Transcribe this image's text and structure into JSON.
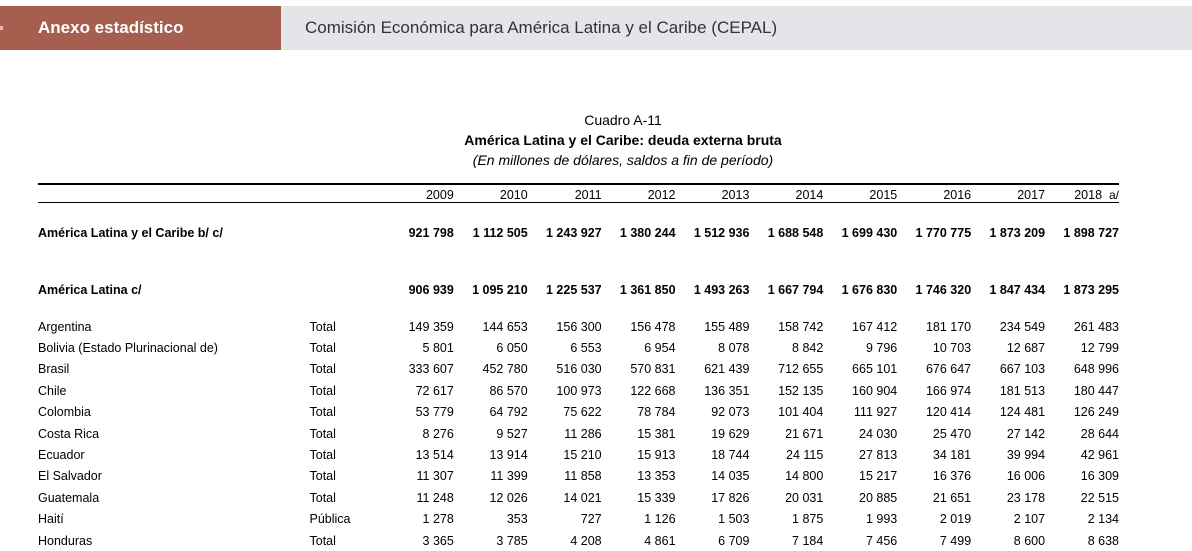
{
  "header": {
    "section": "Anexo estadístico",
    "organization": "Comisión Económica para América Latina y el Caribe (CEPAL)"
  },
  "table": {
    "number": "Cuadro A-11",
    "title": "América Latina y el Caribe: deuda externa bruta",
    "subtitle": "(En millones de dólares, saldos a fin de período)",
    "years": [
      "2009",
      "2010",
      "2011",
      "2012",
      "2013",
      "2014",
      "2015",
      "2016",
      "2017",
      "2018"
    ],
    "last_year_note": "a/",
    "aggregates": [
      {
        "label": "América Latina y el Caribe b/ c/",
        "values": [
          "921 798",
          "1 112 505",
          "1 243 927",
          "1 380 244",
          "1 512 936",
          "1 688 548",
          "1 699 430",
          "1 770 775",
          "1 873 209",
          "1 898 727"
        ]
      },
      {
        "label": "América Latina c/",
        "values": [
          "906 939",
          "1 095 210",
          "1 225 537",
          "1 361 850",
          "1 493 263",
          "1 667 794",
          "1 676 830",
          "1 746 320",
          "1 847 434",
          "1 873 295"
        ]
      }
    ],
    "rows": [
      {
        "country": "Argentina",
        "type": "Total",
        "values": [
          "149 359",
          "144 653",
          "156 300",
          "156 478",
          "155 489",
          "158 742",
          "167 412",
          "181 170",
          "234 549",
          "261 483"
        ]
      },
      {
        "country": "Bolivia (Estado Plurinacional de)",
        "type": "Total",
        "values": [
          "5 801",
          "6 050",
          "6 553",
          "6 954",
          "8 078",
          "8 842",
          "9 796",
          "10 703",
          "12 687",
          "12 799"
        ]
      },
      {
        "country": "Brasil",
        "type": "Total",
        "values": [
          "333 607",
          "452 780",
          "516 030",
          "570 831",
          "621 439",
          "712 655",
          "665 101",
          "676 647",
          "667 103",
          "648 996"
        ]
      },
      {
        "country": "Chile",
        "type": "Total",
        "values": [
          "72 617",
          "86 570",
          "100 973",
          "122 668",
          "136 351",
          "152 135",
          "160 904",
          "166 974",
          "181 513",
          "180 447"
        ]
      },
      {
        "country": "Colombia",
        "type": "Total",
        "values": [
          "53 779",
          "64 792",
          "75 622",
          "78 784",
          "92 073",
          "101 404",
          "111 927",
          "120 414",
          "124 481",
          "126 249"
        ]
      },
      {
        "country": "Costa Rica",
        "type": "Total",
        "values": [
          "8 276",
          "9 527",
          "11 286",
          "15 381",
          "19 629",
          "21 671",
          "24 030",
          "25 470",
          "27 142",
          "28 644"
        ]
      },
      {
        "country": "Ecuador",
        "type": "Total",
        "values": [
          "13 514",
          "13 914",
          "15 210",
          "15 913",
          "18 744",
          "24 115",
          "27 813",
          "34 181",
          "39 994",
          "42 961"
        ]
      },
      {
        "country": "El Salvador",
        "type": "Total",
        "values": [
          "11 307",
          "11 399",
          "11 858",
          "13 353",
          "14 035",
          "14 800",
          "15 217",
          "16 376",
          "16 006",
          "16 309"
        ]
      },
      {
        "country": "Guatemala",
        "type": "Total",
        "values": [
          "11 248",
          "12 026",
          "14 021",
          "15 339",
          "17 826",
          "20 031",
          "20 885",
          "21 651",
          "23 178",
          "22 515"
        ]
      },
      {
        "country": "Haití",
        "type": "Pública",
        "values": [
          "1 278",
          "353",
          "727",
          "1 126",
          "1 503",
          "1 875",
          "1 993",
          "2 019",
          "2 107",
          "2 134"
        ]
      },
      {
        "country": "Honduras",
        "type": "Total",
        "values": [
          "3 365",
          "3 785",
          "4 208",
          "4 861",
          "6 709",
          "7 184",
          "7 456",
          "7 499",
          "8 600",
          "8 638"
        ]
      }
    ]
  }
}
